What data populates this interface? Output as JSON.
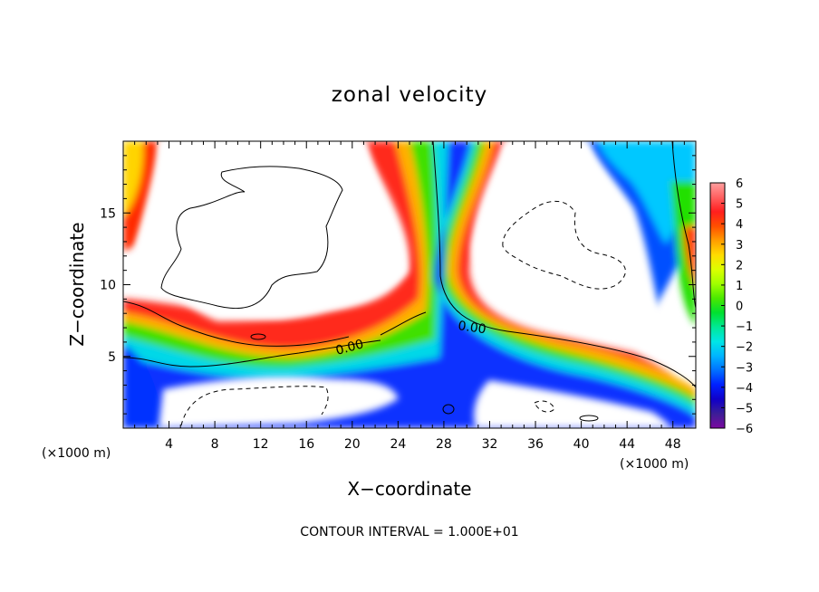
{
  "title": "zonal velocity",
  "xlabel": "X−coordinate",
  "ylabel": "Z−coordinate",
  "x_unit_left": "(×1000 m)",
  "x_unit_right": "(×1000 m)",
  "footer": "CONTOUR INTERVAL = 1.000E+01",
  "contour_labels": [
    "0.00",
    "0.00"
  ],
  "chart_data": {
    "type": "heatmap",
    "title": "zonal velocity",
    "xlabel": "X−coordinate",
    "ylabel": "Z−coordinate",
    "x_unit": "×1000 m",
    "xlim": [
      0,
      50
    ],
    "ylim": [
      0,
      20
    ],
    "x_ticks": [
      4,
      8,
      12,
      16,
      20,
      24,
      28,
      32,
      36,
      40,
      44,
      48
    ],
    "y_ticks": [
      5,
      10,
      15
    ],
    "colorbar": {
      "ticks": [
        6,
        5,
        4,
        3,
        2,
        1,
        0,
        -1,
        -2,
        -3,
        -4,
        -5,
        -6
      ],
      "tick_labels": [
        "6",
        "5",
        "4",
        "3",
        "2",
        "1",
        "0",
        "−1",
        "−2",
        "−3",
        "−4",
        "−5",
        "−6"
      ],
      "range": [
        -6,
        6
      ],
      "colors": [
        "#ff9f9f",
        "#ff6060",
        "#ff1e1e",
        "#ff4f00",
        "#ff9d00",
        "#ffdc00",
        "#dcff00",
        "#a0ff00",
        "#4be800",
        "#00e030",
        "#00e896",
        "#00e6e6",
        "#00b4ff",
        "#0070ff",
        "#0020ff",
        "#1000c8",
        "#3c1e96",
        "#7b0aa0"
      ]
    },
    "contour_interval": "1.000E+01",
    "contour_levels_labeled": [
      "0.00",
      "0.00"
    ],
    "annotations": [
      "CONTOUR INTERVAL = 1.000E+01"
    ]
  }
}
